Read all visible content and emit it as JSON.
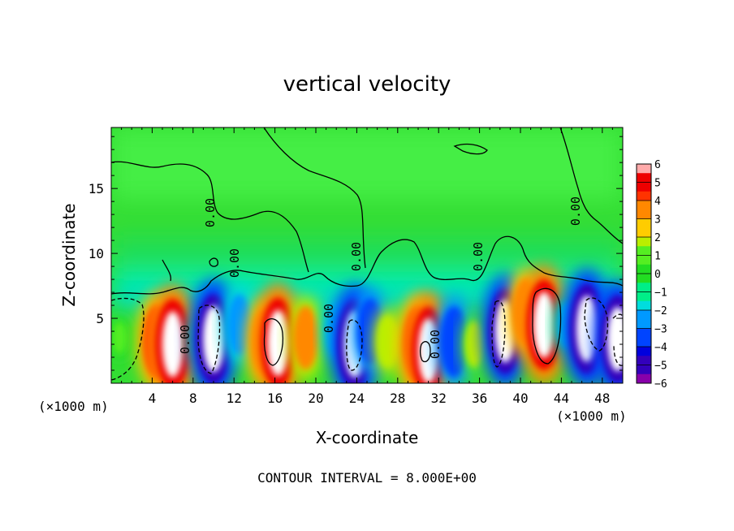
{
  "chart_data": {
    "type": "heatmap",
    "title": "vertical velocity",
    "xlabel": "X-coordinate",
    "ylabel": "Z-coordinate",
    "x_unit": "(×1000 m)",
    "x_ticks": [
      4,
      8,
      12,
      16,
      20,
      24,
      28,
      32,
      36,
      40,
      44,
      48
    ],
    "y_ticks": [
      5,
      10,
      15
    ],
    "xlim": [
      0,
      50
    ],
    "ylim": [
      0,
      19.7
    ],
    "colorbar_ticks": [
      "6",
      "5",
      "4",
      "3",
      "2",
      "1",
      "0",
      "−1",
      "−2",
      "−3",
      "−4",
      "−5",
      "−6"
    ],
    "colorbar_range": [
      -6,
      6
    ],
    "contour_label": "0.00",
    "contour_interval_text": "CONTOUR INTERVAL = 8.000E+00",
    "cells": [
      {
        "x": 0.8,
        "z": 3.5,
        "w": 0.6
      },
      {
        "x": 4.5,
        "z": 3.2,
        "w": 4.8
      },
      {
        "x": 6.0,
        "z": 3.0,
        "w": 6.5
      },
      {
        "x": 8.5,
        "z": 3.4,
        "w": 1.0
      },
      {
        "x": 10.0,
        "z": 3.4,
        "w": -6.5
      },
      {
        "x": 12.5,
        "z": 4.5,
        "w": -3.5
      },
      {
        "x": 15.0,
        "z": 3.2,
        "w": 4.0
      },
      {
        "x": 16.3,
        "z": 3.1,
        "w": 6.5
      },
      {
        "x": 19.0,
        "z": 3.5,
        "w": 3.8
      },
      {
        "x": 22.0,
        "z": 4.2,
        "w": -2.5
      },
      {
        "x": 23.8,
        "z": 3.0,
        "w": -6.5
      },
      {
        "x": 25.3,
        "z": 4.0,
        "w": -4.0
      },
      {
        "x": 27.0,
        "z": 3.2,
        "w": 2.5
      },
      {
        "x": 30.0,
        "z": 3.0,
        "w": 5.0
      },
      {
        "x": 31.0,
        "z": 2.5,
        "w": 6.3
      },
      {
        "x": 33.5,
        "z": 3.2,
        "w": -4.5
      },
      {
        "x": 35.5,
        "z": 3.0,
        "w": 2.0
      },
      {
        "x": 38.5,
        "z": 4.0,
        "w": -6.0
      },
      {
        "x": 40.5,
        "z": 5.5,
        "w": 4.0
      },
      {
        "x": 42.3,
        "z": 4.5,
        "w": 6.5
      },
      {
        "x": 44.5,
        "z": 4.5,
        "w": -2.0
      },
      {
        "x": 46.5,
        "z": 4.2,
        "w": -6.5
      },
      {
        "x": 49.5,
        "z": 3.4,
        "w": -6.3
      }
    ]
  }
}
